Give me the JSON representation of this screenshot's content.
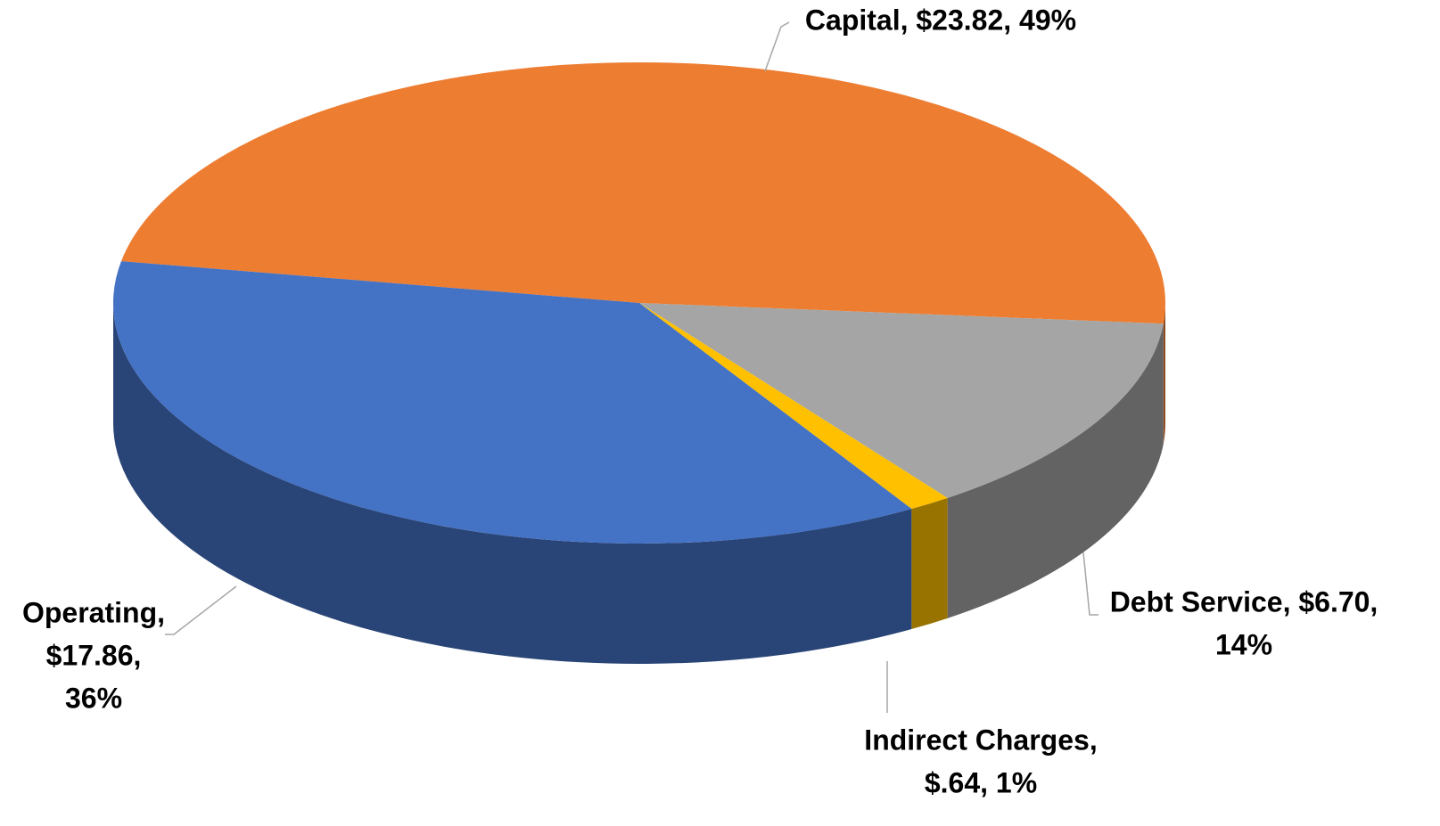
{
  "chart_data": {
    "type": "pie3d",
    "values": [
      23.82,
      6.7,
      0.64,
      17.86
    ],
    "value_labels": [
      [
        "Capital, $23.82, 49%"
      ],
      [
        "Debt Service, $6.70,",
        "14%"
      ],
      [
        "Indirect Charges,",
        "$.64, 1%"
      ],
      [
        "Operating,",
        "$17.86,",
        "36%"
      ]
    ],
    "colors": [
      "#ed7d31",
      "#a5a5a5",
      "#ffc000",
      "#4472c4"
    ]
  }
}
